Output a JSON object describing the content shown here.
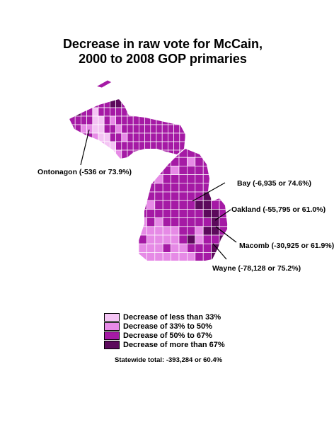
{
  "title": {
    "line1": "Decrease in raw vote for McCain,",
    "line2": "2000 to 2008 GOP primaries"
  },
  "colors": {
    "lt33": "#f4c4f4",
    "c33_50": "#e68ae6",
    "c50_67": "#a51aa5",
    "gt67": "#5c0a5c",
    "county_border": "#ffffff"
  },
  "callouts": {
    "ontonagon": "Ontonagon (-536 or 73.9%)",
    "bay": "Bay (-6,935 or 74.6%)",
    "oakland": "Oakland (-55,795 or 61.0%)",
    "macomb": "Macomb (-30,925 or 61.9%)",
    "wayne": "Wayne (-78,128 or 75.2%)"
  },
  "legend": [
    {
      "label": "Decrease of less than 33%",
      "color": "#f4c4f4"
    },
    {
      "label": "Decrease of 33% to 50%",
      "color": "#e68ae6"
    },
    {
      "label": "Decrease of 50% to 67%",
      "color": "#a51aa5"
    },
    {
      "label": "Decrease of more than 67%",
      "color": "#5c0a5c"
    }
  ],
  "statewide": "Statewide total: -393,284 or 60.4%"
}
